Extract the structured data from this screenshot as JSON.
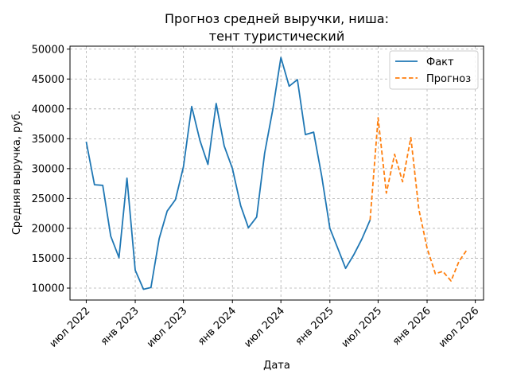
{
  "chart_data": {
    "type": "line",
    "title": [
      "Прогноз средней выручки, ниша:",
      "тент туристический"
    ],
    "xlabel": "Дата",
    "ylabel": "Средняя выручка, руб.",
    "x_ticks": [
      {
        "date": "2022-07-01",
        "label": "июл 2022"
      },
      {
        "date": "2023-01-01",
        "label": "янв 2023"
      },
      {
        "date": "2023-07-01",
        "label": "июл 2023"
      },
      {
        "date": "2024-01-01",
        "label": "янв 2024"
      },
      {
        "date": "2024-07-01",
        "label": "июл 2024"
      },
      {
        "date": "2025-01-01",
        "label": "янв 2025"
      },
      {
        "date": "2025-07-01",
        "label": "июл 2025"
      },
      {
        "date": "2026-01-01",
        "label": "янв 2026"
      },
      {
        "date": "2026-07-01",
        "label": "июл 2026"
      }
    ],
    "xlim": [
      "2022-05-01",
      "2026-08-01"
    ],
    "y_ticks": [
      10000,
      15000,
      20000,
      25000,
      30000,
      35000,
      40000,
      45000,
      50000
    ],
    "ylim": [
      8000,
      50500
    ],
    "grid": true,
    "legend_position": "top-right",
    "series": [
      {
        "name": "Факт",
        "color": "#1f77b4",
        "style": "solid",
        "points": [
          [
            "2022-07-01",
            34500
          ],
          [
            "2022-08-01",
            27300
          ],
          [
            "2022-09-01",
            27200
          ],
          [
            "2022-10-01",
            18700
          ],
          [
            "2022-11-01",
            15100
          ],
          [
            "2022-12-01",
            28400
          ],
          [
            "2023-01-01",
            13000
          ],
          [
            "2023-02-01",
            9800
          ],
          [
            "2023-03-01",
            10100
          ],
          [
            "2023-04-01",
            18300
          ],
          [
            "2023-05-01",
            22900
          ],
          [
            "2023-06-01",
            24800
          ],
          [
            "2023-07-01",
            30300
          ],
          [
            "2023-08-01",
            40400
          ],
          [
            "2023-09-01",
            34700
          ],
          [
            "2023-10-01",
            30700
          ],
          [
            "2023-11-01",
            40900
          ],
          [
            "2023-12-01",
            33800
          ],
          [
            "2024-01-01",
            30000
          ],
          [
            "2024-02-01",
            23800
          ],
          [
            "2024-03-01",
            20100
          ],
          [
            "2024-04-01",
            21900
          ],
          [
            "2024-05-01",
            32600
          ],
          [
            "2024-06-01",
            40000
          ],
          [
            "2024-07-01",
            48600
          ],
          [
            "2024-08-01",
            43800
          ],
          [
            "2024-09-01",
            44900
          ],
          [
            "2024-10-01",
            35700
          ],
          [
            "2024-11-01",
            36100
          ],
          [
            "2024-12-01",
            28800
          ],
          [
            "2025-01-01",
            20000
          ],
          [
            "2025-02-01",
            16500
          ],
          [
            "2025-03-01",
            13300
          ],
          [
            "2025-04-01",
            15600
          ],
          [
            "2025-05-01",
            18200
          ],
          [
            "2025-06-01",
            21400
          ]
        ]
      },
      {
        "name": "Прогноз",
        "color": "#ff7f0e",
        "style": "dashed",
        "points": [
          [
            "2025-06-01",
            21400
          ],
          [
            "2025-07-01",
            38500
          ],
          [
            "2025-08-01",
            25900
          ],
          [
            "2025-09-01",
            32400
          ],
          [
            "2025-10-01",
            27800
          ],
          [
            "2025-11-01",
            35200
          ],
          [
            "2025-12-01",
            23200
          ],
          [
            "2026-01-01",
            16700
          ],
          [
            "2026-02-01",
            12400
          ],
          [
            "2026-03-01",
            12800
          ],
          [
            "2026-04-01",
            11200
          ],
          [
            "2026-05-01",
            14500
          ],
          [
            "2026-06-01",
            16500
          ]
        ]
      }
    ]
  }
}
